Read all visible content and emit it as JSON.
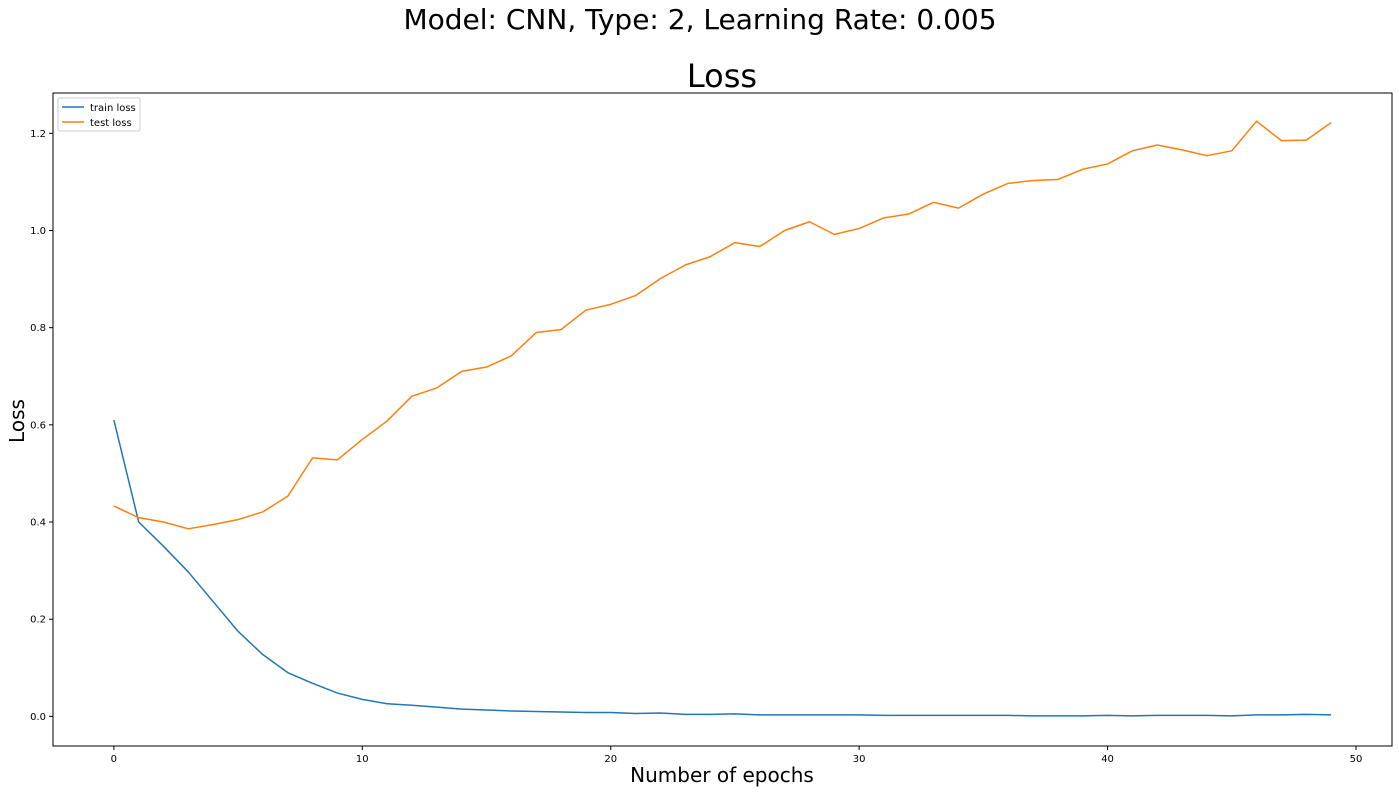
{
  "figure": {
    "suptitle": "Model: CNN, Type: 2, Learning Rate: 0.005"
  },
  "chart_data": {
    "type": "line",
    "title": "Loss",
    "xlabel": "Number of epochs",
    "ylabel": "Loss",
    "xlim": [
      -2.45,
      51.45
    ],
    "ylim": [
      -0.061,
      1.283
    ],
    "xticks": [
      0,
      10,
      20,
      30,
      40,
      50
    ],
    "yticks": [
      0.0,
      0.2,
      0.4,
      0.6,
      0.8,
      1.0,
      1.2
    ],
    "ytick_labels": [
      "0.0",
      "0.2",
      "0.4",
      "0.6",
      "0.8",
      "1.0",
      "1.2"
    ],
    "grid": false,
    "legend_position": "top-left",
    "x": [
      0,
      1,
      2,
      3,
      4,
      5,
      6,
      7,
      8,
      9,
      10,
      11,
      12,
      13,
      14,
      15,
      16,
      17,
      18,
      19,
      20,
      21,
      22,
      23,
      24,
      25,
      26,
      27,
      28,
      29,
      30,
      31,
      32,
      33,
      34,
      35,
      36,
      37,
      38,
      39,
      40,
      41,
      42,
      43,
      44,
      45,
      46,
      47,
      48,
      49
    ],
    "series": [
      {
        "name": "train loss",
        "color": "#1f77b4",
        "values": [
          0.61,
          0.4,
          0.35,
          0.297,
          0.236,
          0.175,
          0.127,
          0.09,
          0.068,
          0.048,
          0.035,
          0.026,
          0.023,
          0.019,
          0.015,
          0.013,
          0.011,
          0.01,
          0.009,
          0.008,
          0.008,
          0.006,
          0.007,
          0.004,
          0.004,
          0.005,
          0.003,
          0.003,
          0.003,
          0.003,
          0.003,
          0.002,
          0.002,
          0.002,
          0.002,
          0.002,
          0.002,
          0.001,
          0.001,
          0.001,
          0.002,
          0.001,
          0.002,
          0.002,
          0.002,
          0.001,
          0.003,
          0.003,
          0.004,
          0.003
        ]
      },
      {
        "name": "test loss",
        "color": "#ff7f0e",
        "values": [
          0.433,
          0.409,
          0.4,
          0.386,
          0.395,
          0.405,
          0.421,
          0.453,
          0.532,
          0.528,
          0.57,
          0.608,
          0.659,
          0.676,
          0.71,
          0.719,
          0.742,
          0.79,
          0.796,
          0.836,
          0.848,
          0.866,
          0.901,
          0.929,
          0.946,
          0.975,
          0.967,
          1.0,
          1.018,
          0.992,
          1.004,
          1.026,
          1.034,
          1.058,
          1.046,
          1.075,
          1.097,
          1.103,
          1.105,
          1.126,
          1.137,
          1.164,
          1.176,
          1.166,
          1.154,
          1.164,
          1.225,
          1.185,
          1.186,
          1.222
        ]
      }
    ]
  }
}
